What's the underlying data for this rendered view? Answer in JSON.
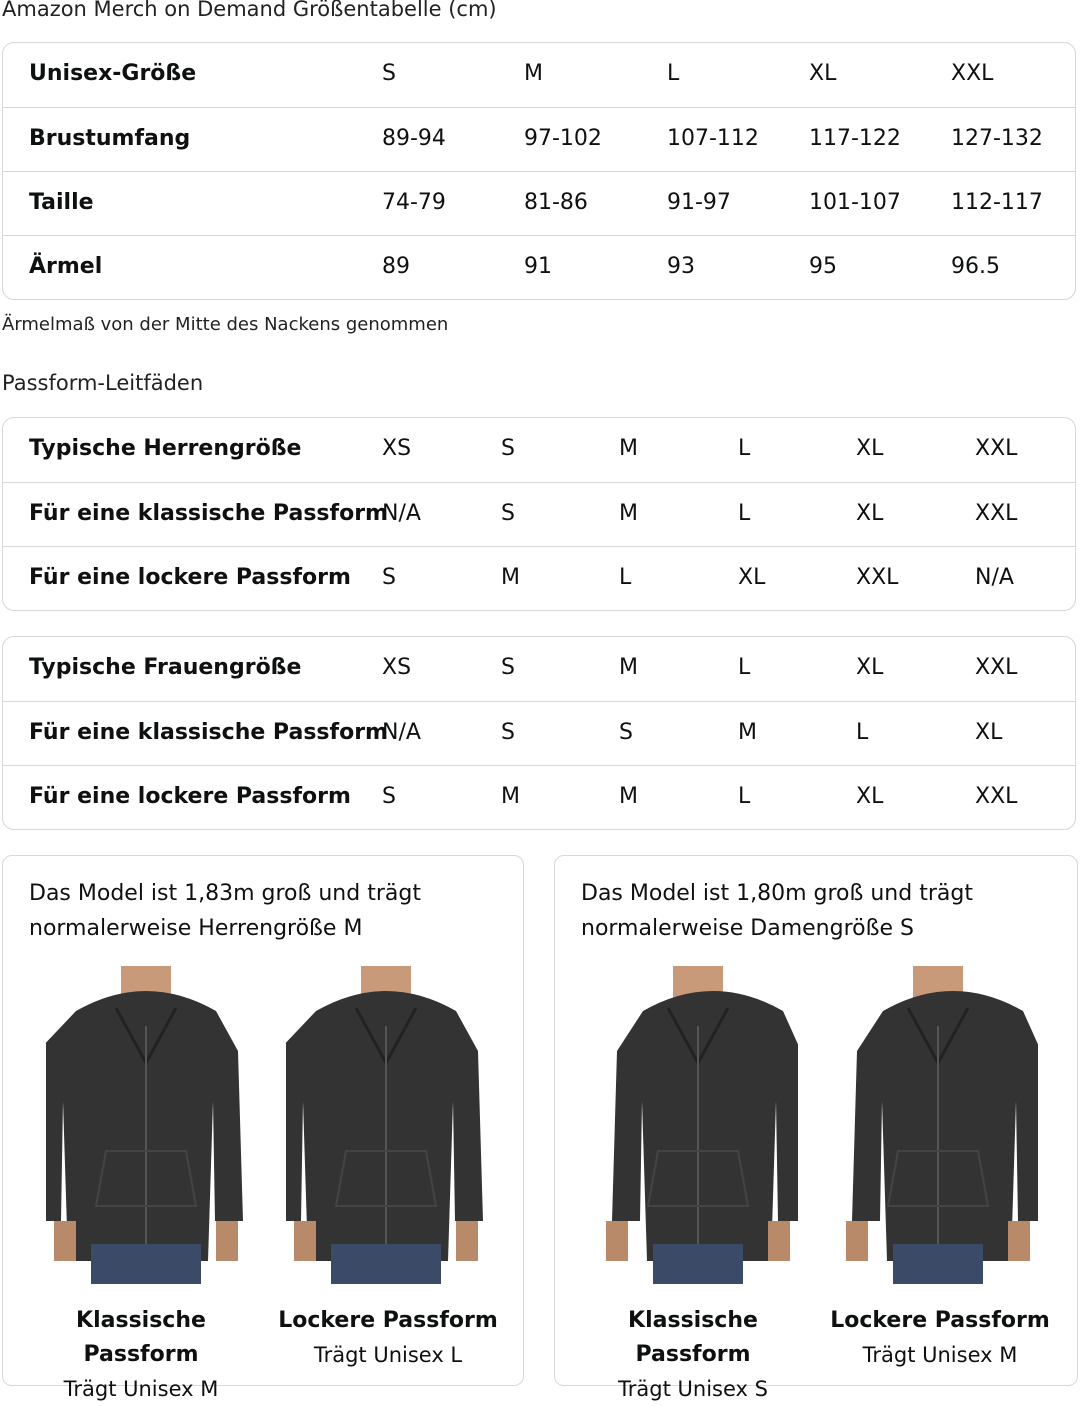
{
  "title": "Amazon Merch on Demand Größentabelle (cm)",
  "size_table": {
    "rows": [
      {
        "label": "Unisex-Größe",
        "values": [
          "S",
          "M",
          "L",
          "XL",
          "XXL"
        ]
      },
      {
        "label": "Brustumfang",
        "values": [
          "89-94",
          "97-102",
          "107-112",
          "117-122",
          "127-132"
        ]
      },
      {
        "label": "Taille",
        "values": [
          "74-79",
          "81-86",
          "91-97",
          "101-107",
          "112-117"
        ]
      },
      {
        "label": "Ärmel",
        "values": [
          "89",
          "91",
          "93",
          "95",
          "96.5"
        ]
      }
    ]
  },
  "sleeve_note": "Ärmelmaß von der Mitte des Nackens genommen",
  "fit_guide_title": "Passform-Leitfäden",
  "men_table": {
    "rows": [
      {
        "label": "Typische Herrengröße",
        "values": [
          "XS",
          "S",
          "M",
          "L",
          "XL",
          "XXL"
        ]
      },
      {
        "label": "Für eine klassische Passform",
        "values": [
          "N/A",
          "S",
          "M",
          "L",
          "XL",
          "XXL"
        ]
      },
      {
        "label": "Für eine lockere Passform",
        "values": [
          "S",
          "M",
          "L",
          "XL",
          "XXL",
          "N/A"
        ]
      }
    ]
  },
  "women_table": {
    "rows": [
      {
        "label": "Typische Frauengröße",
        "values": [
          "XS",
          "S",
          "M",
          "L",
          "XL",
          "XXL"
        ]
      },
      {
        "label": "Für eine klassische Passform",
        "values": [
          "N/A",
          "S",
          "S",
          "M",
          "L",
          "XL"
        ]
      },
      {
        "label": "Für eine lockere Passform",
        "values": [
          "S",
          "M",
          "M",
          "L",
          "XL",
          "XXL"
        ]
      }
    ]
  },
  "cards": [
    {
      "text": "Das Model ist 1,83m groß und trägt normalerweise Herrengröße M",
      "photos": [
        {
          "fit": "Klassische Passform",
          "wears": "Trägt Unisex M"
        },
        {
          "fit": "Lockere Passform",
          "wears": "Trägt Unisex L"
        }
      ]
    },
    {
      "text": "Das Model ist 1,80m groß und trägt normalerweise Damengröße S",
      "photos": [
        {
          "fit": "Klassische Passform",
          "wears": "Trägt Unisex S"
        },
        {
          "fit": "Lockere Passform",
          "wears": "Trägt Unisex M"
        }
      ]
    }
  ],
  "colors": {
    "border": "#d5d9d9",
    "hoodie": "#333333",
    "jeans": "#3b4a66"
  }
}
